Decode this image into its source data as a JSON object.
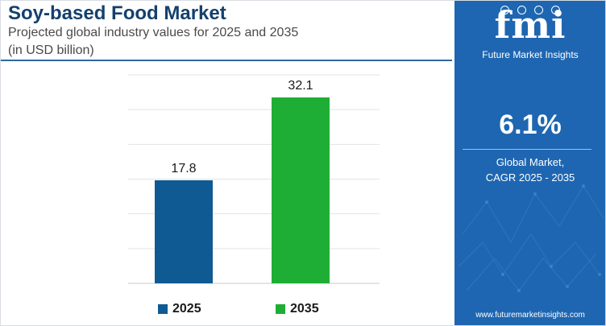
{
  "header": {
    "title": "Soy-based Food Market",
    "subtitle_line1": "Projected global industry values for 2025 and 2035",
    "subtitle_line2": "(in USD billion)"
  },
  "chart_data": {
    "type": "bar",
    "title": "Soy-based Food Market",
    "subtitle": "Projected global industry values for 2025 and 2035 (in USD billion)",
    "categories": [
      "2025",
      "2035"
    ],
    "values": [
      17.8,
      32.1
    ],
    "data_labels": [
      "17.8",
      "32.1"
    ],
    "colors": [
      "#0f5a92",
      "#1fae35"
    ],
    "xlabel": "",
    "ylabel": "",
    "ylim": [
      0,
      36
    ],
    "grid": true,
    "legend": {
      "position": "bottom",
      "entries": [
        {
          "label": "2025",
          "color": "#0f5a92"
        },
        {
          "label": "2035",
          "color": "#1fae35"
        }
      ]
    }
  },
  "side_panel": {
    "logo_text": "fmi",
    "logo_caption": "Future Market Insights",
    "cagr_value": "6.1%",
    "cagr_label_line1": "Global Market,",
    "cagr_label_line2": "CAGR 2025 - 2035",
    "website": "www.futuremarketinsights.com",
    "background_color": "#1e66b1"
  }
}
